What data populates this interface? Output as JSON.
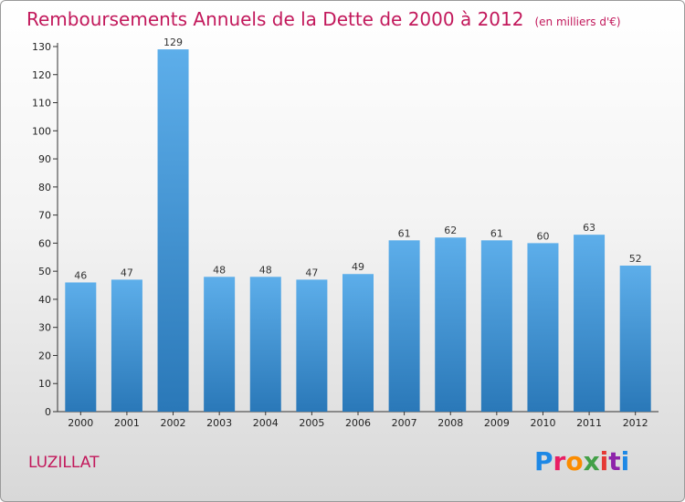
{
  "title": "Remboursements Annuels de la Dette de 2000 à 2012",
  "unit": "(en milliers d'€)",
  "town": "LUZILLAT",
  "brand": "Proxiti",
  "colors": {
    "title": "#c2185b",
    "bar_top": "#5daeea",
    "bar_bottom": "#2a78b8"
  },
  "chart_data": {
    "type": "bar",
    "categories": [
      "2000",
      "2001",
      "2002",
      "2003",
      "2004",
      "2005",
      "2006",
      "2007",
      "2008",
      "2009",
      "2010",
      "2011",
      "2012"
    ],
    "values": [
      46,
      47,
      129,
      48,
      48,
      47,
      49,
      61,
      62,
      61,
      60,
      63,
      52
    ],
    "ylim": [
      0,
      130
    ],
    "yticks": [
      0,
      10,
      20,
      30,
      40,
      50,
      60,
      70,
      80,
      90,
      100,
      110,
      120,
      130
    ],
    "grid": false,
    "legend": "none"
  }
}
